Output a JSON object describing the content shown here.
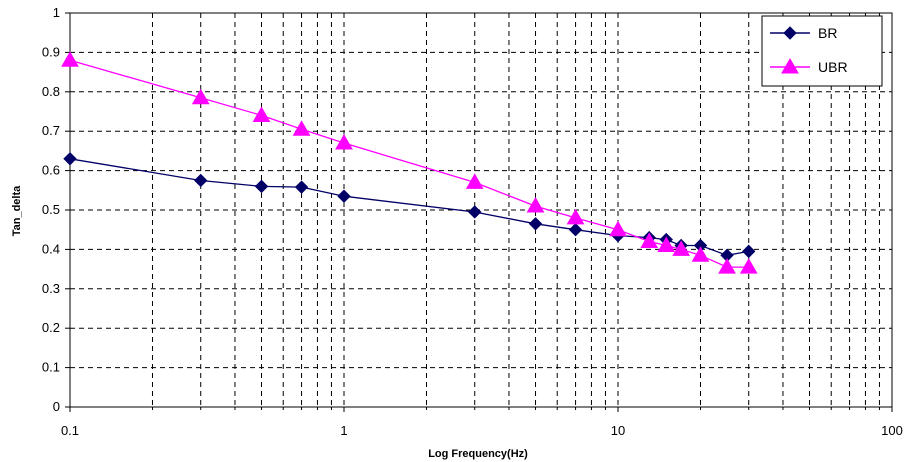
{
  "chart_data": {
    "type": "line",
    "title": "",
    "xlabel": "Log Frequency(Hz)",
    "ylabel": "Tan_delta",
    "x_scale": "log",
    "xlim": [
      0.1,
      100
    ],
    "ylim": [
      0,
      1
    ],
    "grid": true,
    "legend_position": "top-right",
    "x_tick_labels": [
      "0.1",
      "1",
      "10",
      "100"
    ],
    "y_tick_labels": [
      "0",
      "0.1",
      "0.2",
      "0.3",
      "0.4",
      "0.5",
      "0.6",
      "0.7",
      "0.8",
      "0.9",
      "1"
    ],
    "series": [
      {
        "name": "BR",
        "color": "#000066",
        "marker": "diamond",
        "x": [
          0.1,
          0.3,
          0.5,
          0.7,
          1,
          3,
          5,
          7,
          10,
          13,
          15,
          17,
          20,
          25,
          30
        ],
        "y": [
          0.63,
          0.575,
          0.56,
          0.558,
          0.535,
          0.495,
          0.465,
          0.45,
          0.435,
          0.43,
          0.425,
          0.41,
          0.41,
          0.385,
          0.395
        ]
      },
      {
        "name": "UBR",
        "color": "#ff00ff",
        "marker": "triangle",
        "x": [
          0.1,
          0.3,
          0.5,
          0.7,
          1,
          3,
          5,
          7,
          10,
          13,
          15,
          17,
          20,
          25,
          30
        ],
        "y": [
          0.88,
          0.785,
          0.74,
          0.705,
          0.67,
          0.57,
          0.51,
          0.48,
          0.45,
          0.42,
          0.41,
          0.4,
          0.385,
          0.355,
          0.355
        ]
      }
    ]
  }
}
